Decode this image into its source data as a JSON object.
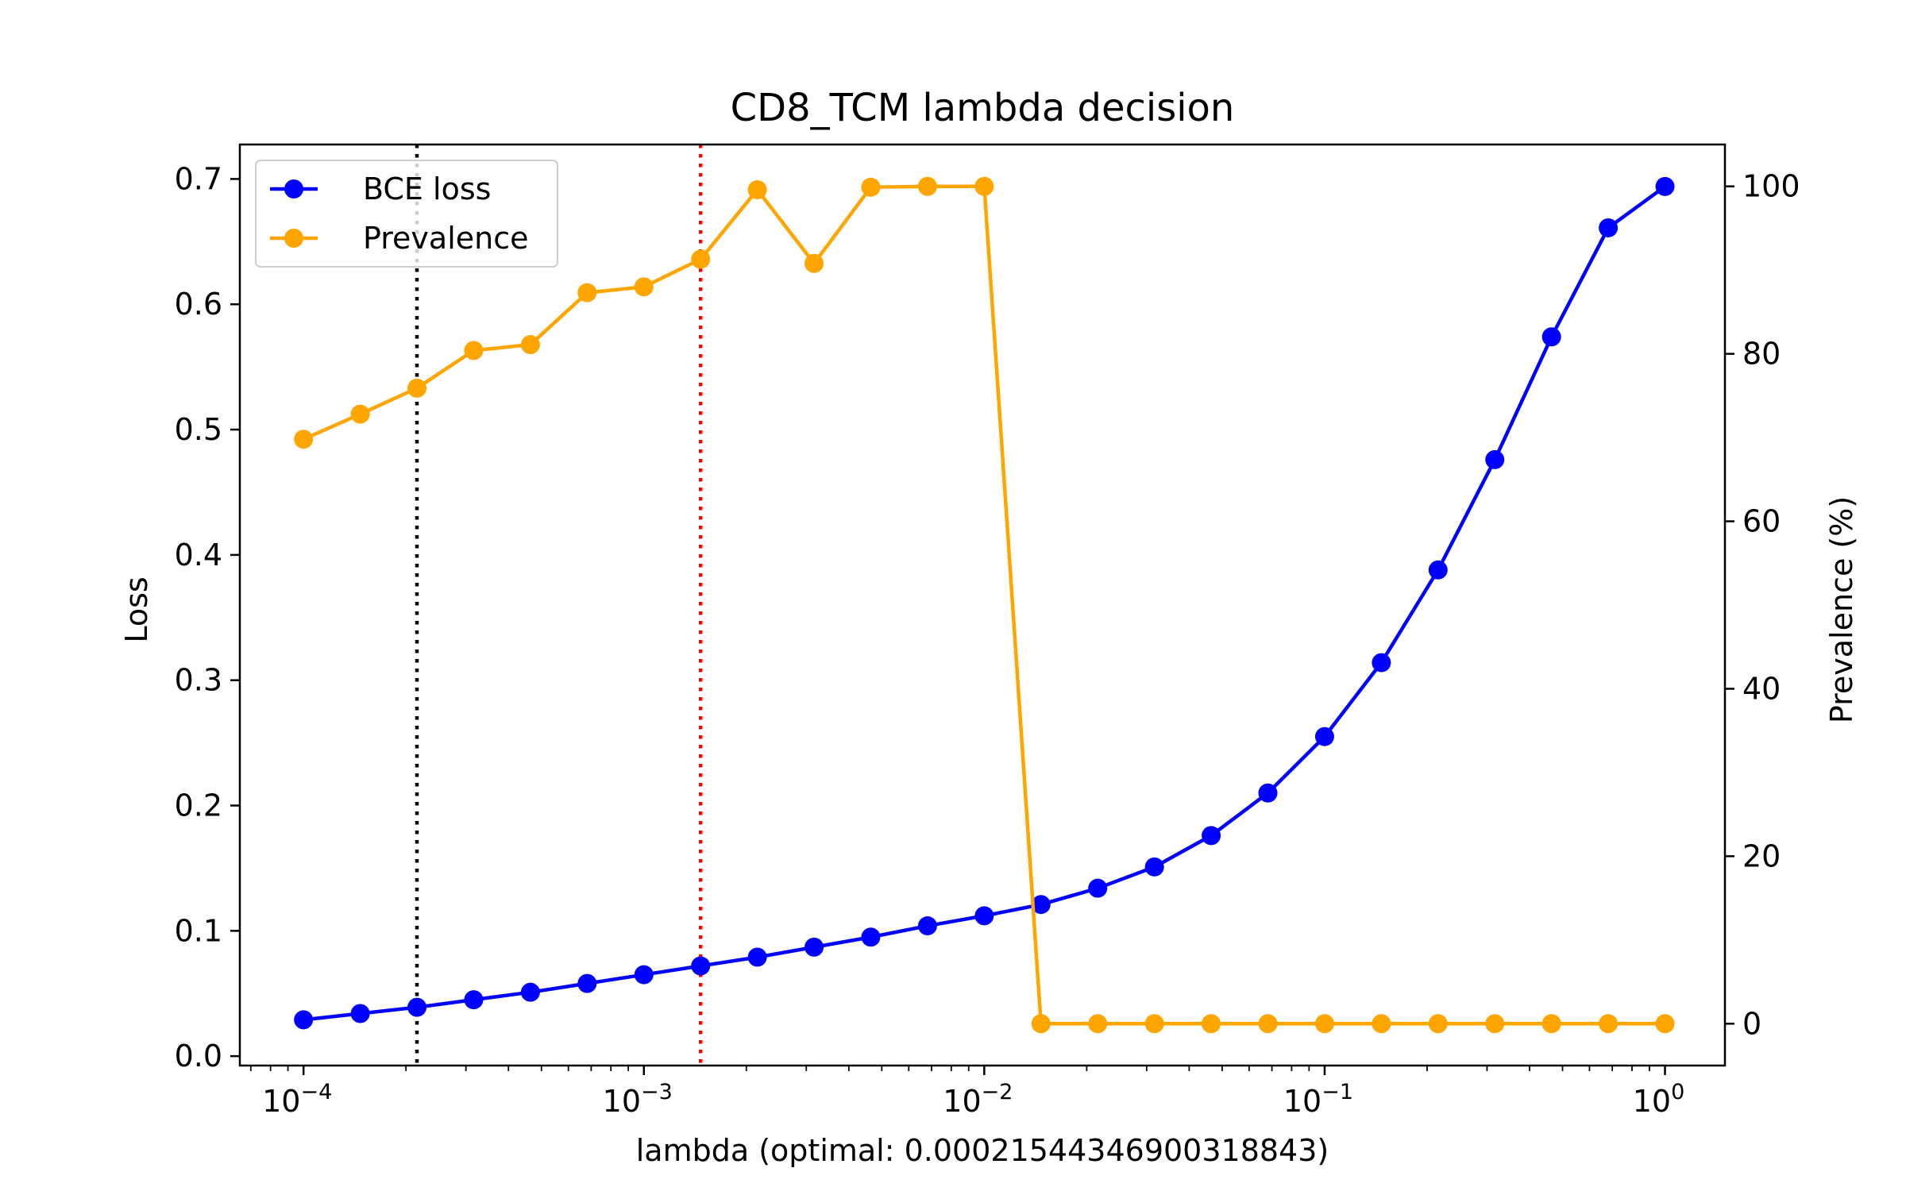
{
  "chart_data": {
    "type": "line",
    "title": "CD8_TCM lambda decision",
    "xlabel": "lambda (optimal: 0.00021544346900318843)",
    "ylabel_left": "Loss",
    "ylabel_right": "Prevalence (%)",
    "x_scale": "log",
    "xlim": [
      6.5e-05,
      1.5
    ],
    "ylim_left": [
      -0.0075,
      0.7275
    ],
    "ylim_right": [
      -5,
      105
    ],
    "x_ticks": [
      {
        "value": 0.0001,
        "base": "10",
        "exp": "−4"
      },
      {
        "value": 0.001,
        "base": "10",
        "exp": "−3"
      },
      {
        "value": 0.01,
        "base": "10",
        "exp": "−2"
      },
      {
        "value": 0.1,
        "base": "10",
        "exp": "−1"
      },
      {
        "value": 1,
        "base": "10",
        "exp": "0"
      }
    ],
    "y_left_ticks": [
      "0.0",
      "0.1",
      "0.2",
      "0.3",
      "0.4",
      "0.5",
      "0.6",
      "0.7"
    ],
    "y_right_ticks": [
      "0",
      "20",
      "40",
      "60",
      "80",
      "100"
    ],
    "x": [
      0.0001,
      0.00014678,
      0.000215443,
      0.000316228,
      0.000464159,
      0.000681292,
      0.001,
      0.001467799,
      0.002154435,
      0.003162278,
      0.004641589,
      0.006812921,
      0.01,
      0.014677993,
      0.021544347,
      0.031622777,
      0.046415888,
      0.068129207,
      0.1,
      0.146779927,
      0.215443469,
      0.316227766,
      0.464158883,
      0.681292069,
      1.0
    ],
    "series": [
      {
        "name": "BCE loss",
        "axis": "left",
        "color": "#0000ff",
        "values": [
          0.029,
          0.034,
          0.039,
          0.045,
          0.051,
          0.058,
          0.065,
          0.072,
          0.079,
          0.087,
          0.095,
          0.104,
          0.112,
          0.121,
          0.134,
          0.151,
          0.176,
          0.21,
          0.255,
          0.314,
          0.388,
          0.476,
          0.574,
          0.661,
          0.694
        ]
      },
      {
        "name": "Prevalence",
        "axis": "right",
        "color": "#ffa500",
        "values": [
          69.8,
          72.8,
          75.9,
          80.4,
          81.1,
          87.3,
          88.0,
          91.3,
          99.6,
          90.8,
          99.9,
          100.0,
          100.0,
          0,
          0,
          0,
          0,
          0,
          0,
          0,
          0,
          0,
          0,
          0,
          0
        ]
      }
    ],
    "vlines": [
      {
        "x": 0.00021544346900318842,
        "color": "#000000",
        "style": "dotted"
      },
      {
        "x": 0.001467799,
        "color": "#ff0000",
        "style": "dotted"
      }
    ],
    "legend": "top-left",
    "grid": false
  }
}
